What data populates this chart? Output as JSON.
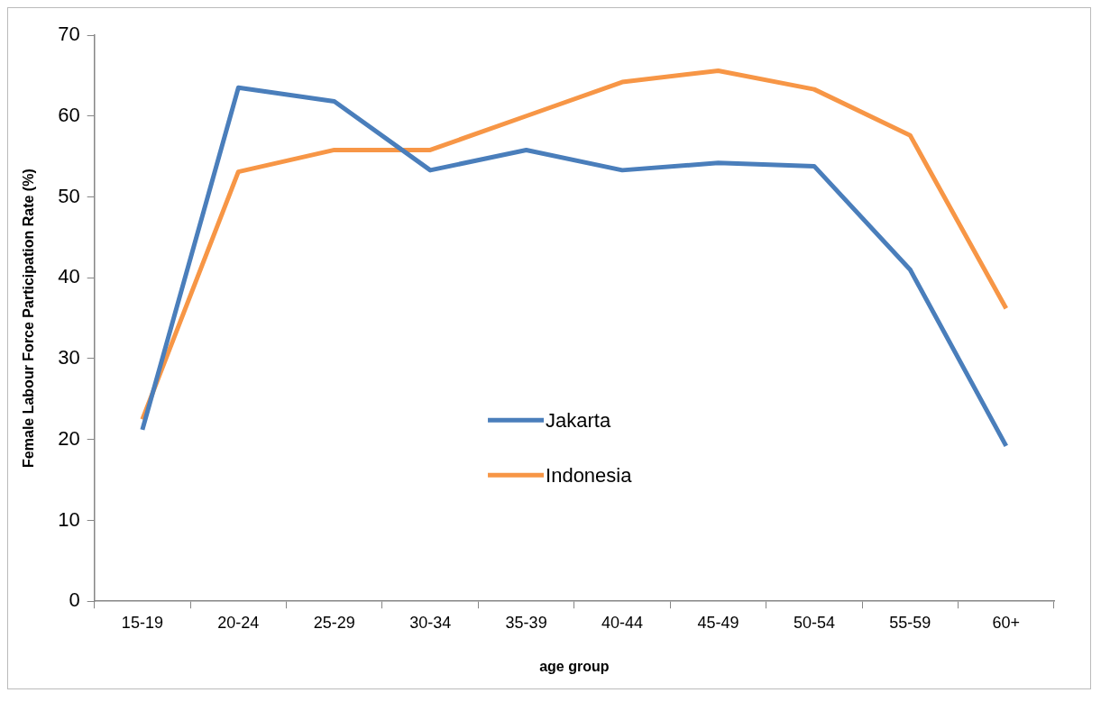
{
  "chart_data": {
    "type": "line",
    "xlabel": "age group",
    "ylabel": "Female Labour Force Participation Rate (%)",
    "categories": [
      "15-19",
      "20-24",
      "25-29",
      "30-34",
      "35-39",
      "40-44",
      "45-49",
      "50-54",
      "55-59",
      "60+"
    ],
    "series": [
      {
        "name": "Jakarta",
        "color": "#4a7ebb",
        "values": [
          21.2,
          63.5,
          61.8,
          53.3,
          55.8,
          53.3,
          54.2,
          53.8,
          41.0,
          19.2
        ]
      },
      {
        "name": "Indonesia",
        "color": "#f79646",
        "values": [
          22.5,
          53.1,
          55.8,
          55.8,
          60.0,
          64.2,
          65.6,
          63.3,
          57.6,
          36.2
        ]
      }
    ],
    "ylim": [
      0,
      70
    ],
    "yticks": [
      0,
      10,
      20,
      30,
      40,
      50,
      60,
      70
    ],
    "grid": false,
    "legend": "center",
    "marker": "none",
    "line_style": "solid"
  }
}
